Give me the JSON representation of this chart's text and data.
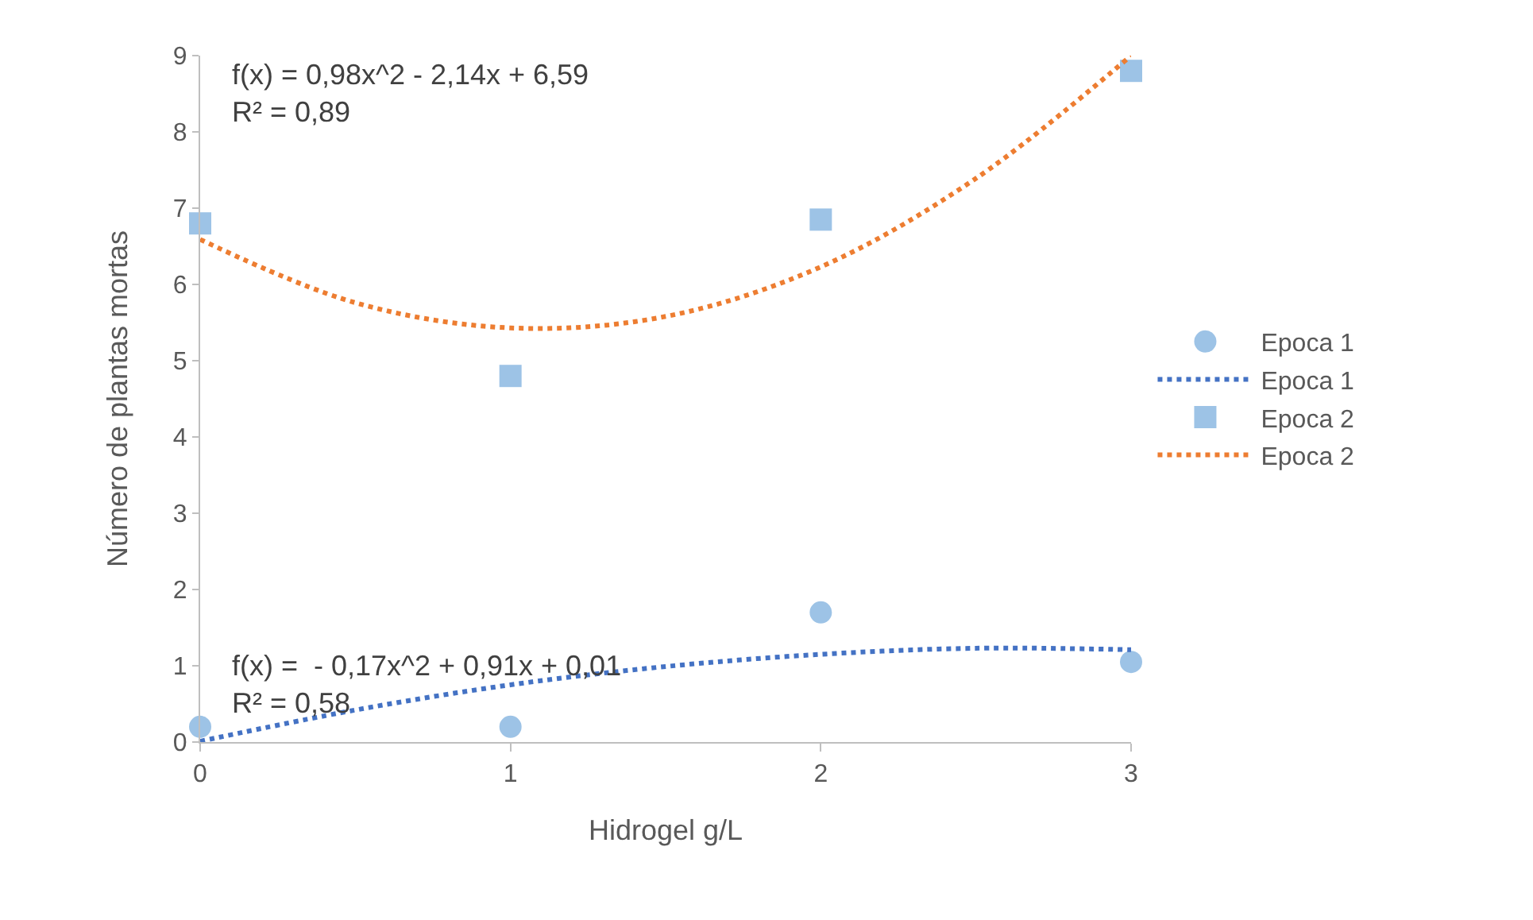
{
  "chart_data": {
    "type": "scatter",
    "xlabel": "Hidrogel g/L",
    "ylabel": "Número de plantas mortas",
    "xlim": [
      0,
      3
    ],
    "xticks": [
      0,
      1,
      2,
      3
    ],
    "ylim": [
      0,
      9
    ],
    "yticks": [
      0,
      1,
      2,
      3,
      4,
      5,
      6,
      7,
      8,
      9
    ],
    "grid": false,
    "legend": "right",
    "series": [
      {
        "name": "Epoca 1",
        "type": "scatter",
        "marker": "circle",
        "color": "#9dc3e6",
        "x": [
          0,
          1,
          2,
          3
        ],
        "values": [
          0.2,
          0.2,
          1.7,
          1.05
        ]
      },
      {
        "name": "Epoca 1",
        "type": "line",
        "line_style": "dotted",
        "color": "#4472c4",
        "x": [
          0,
          0.5,
          1,
          1.5,
          2,
          2.5,
          3
        ],
        "values": [
          0.01,
          0.42,
          0.75,
          0.99,
          1.15,
          1.23,
          1.21
        ]
      },
      {
        "name": "Epoca 2",
        "type": "scatter",
        "marker": "square",
        "color": "#9dc3e6",
        "x": [
          0,
          1,
          2,
          3
        ],
        "values": [
          6.8,
          4.8,
          6.85,
          8.8
        ]
      },
      {
        "name": "Epoca 2",
        "type": "line",
        "line_style": "dotted",
        "color": "#ed7d31",
        "x": [
          0,
          0.5,
          1,
          1.5,
          2,
          2.5,
          3
        ],
        "values": [
          6.59,
          5.76,
          5.43,
          5.58,
          6.23,
          7.39,
          9.0
        ]
      }
    ],
    "annotations": [
      "f(x) = 0,98x^2 - 2,14x + 6,59\nR² = 0,89",
      "f(x) =  - 0,17x^2 + 0,91x + 0,01\nR² = 0,58"
    ]
  }
}
